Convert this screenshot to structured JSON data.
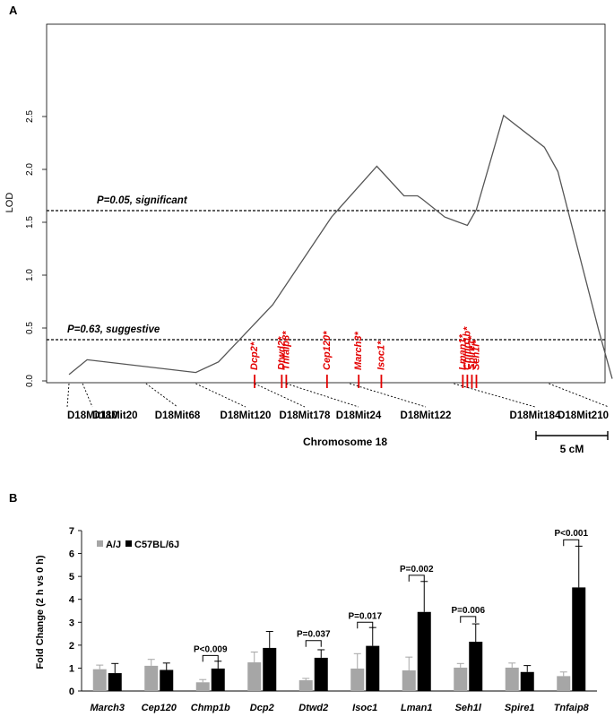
{
  "chart_data": [
    {
      "panel": "A",
      "type": "line",
      "ylabel": "LOD",
      "xlabel": "Chromosome 18",
      "ylim": [
        0,
        2.6
      ],
      "yticks": [
        "0.0",
        "0.5",
        "1.0",
        "1.5",
        "2.0",
        "2.5"
      ],
      "x": [
        0,
        4,
        28,
        33,
        45,
        58,
        68,
        74,
        77,
        78,
        83,
        88,
        90,
        96,
        105,
        108,
        117,
        120
      ],
      "lod": [
        0.06,
        0.2,
        0.08,
        0.18,
        0.72,
        1.55,
        2.03,
        1.75,
        1.75,
        1.72,
        1.55,
        1.47,
        1.62,
        2.51,
        2.21,
        1.98,
        0.48,
        0.02
      ],
      "thresholds": [
        {
          "label": "P=0.05, significant",
          "value": 1.61
        },
        {
          "label": "P=0.63, suggestive",
          "value": 0.39
        }
      ],
      "markers": [
        {
          "name": "D18Mit110",
          "x": 0
        },
        {
          "name": "D18Mit20",
          "x": 3
        },
        {
          "name": "D18Mit68",
          "x": 17
        },
        {
          "name": "D18Mit120",
          "x": 28
        },
        {
          "name": "D18Mit178",
          "x": 41
        },
        {
          "name": "D18Mit24",
          "x": 48
        },
        {
          "name": "D18Mit122",
          "x": 62
        },
        {
          "name": "D18Mit184",
          "x": 85
        },
        {
          "name": "D18Mit210",
          "x": 106
        }
      ],
      "genes": [
        {
          "name": "Dcp2*",
          "x": 41
        },
        {
          "name": "Dtwd2*",
          "x": 47
        },
        {
          "name": "Tnfaip8*",
          "x": 48
        },
        {
          "name": "Cep120*",
          "x": 57
        },
        {
          "name": "March3*",
          "x": 64
        },
        {
          "name": "Isoc1*",
          "x": 69
        },
        {
          "name": "Lman1*",
          "x": 87
        },
        {
          "name": "Chmp1b*",
          "x": 88
        },
        {
          "name": "Spire1*",
          "x": 89
        },
        {
          "name": "Seh1l*",
          "x": 90
        }
      ],
      "scale_bar": "5 cM"
    },
    {
      "panel": "B",
      "type": "bar",
      "ylabel": "Fold Change (2 h vs 0 h)",
      "ylim": [
        0,
        7
      ],
      "yticks": [
        "0",
        "1",
        "2",
        "3",
        "4",
        "5",
        "6",
        "7"
      ],
      "categories": [
        "March3",
        "Cep120",
        "Chmp1b",
        "Dcp2",
        "Dtwd2",
        "Isoc1",
        "Lman1",
        "Seh1l",
        "Spire1",
        "Tnfaip8"
      ],
      "series": [
        {
          "name": "A/J",
          "color": "#a6a6a6",
          "values": [
            0.95,
            1.1,
            0.38,
            1.25,
            0.47,
            0.98,
            0.9,
            1.02,
            1.02,
            0.65
          ],
          "errors": [
            0.18,
            0.28,
            0.12,
            0.45,
            0.08,
            0.65,
            0.58,
            0.18,
            0.2,
            0.18
          ]
        },
        {
          "name": "C57BL/6J",
          "color": "#000000",
          "values": [
            0.78,
            0.92,
            0.98,
            1.88,
            1.45,
            1.97,
            3.45,
            2.15,
            0.83,
            4.52
          ],
          "errors": [
            0.42,
            0.3,
            0.32,
            0.72,
            0.35,
            0.8,
            1.33,
            0.78,
            0.28,
            1.8
          ]
        }
      ],
      "pvalues": [
        {
          "category": "Chmp1b",
          "label": "P<0.009",
          "y": 1.55
        },
        {
          "category": "Dtwd2",
          "label": "P=0.037",
          "y": 2.2
        },
        {
          "category": "Isoc1",
          "label": "P=0.017",
          "y": 3.0
        },
        {
          "category": "Lman1",
          "label": "P=0.002",
          "y": 5.05
        },
        {
          "category": "Seh1l",
          "label": "P=0.006",
          "y": 3.25
        },
        {
          "category": "Tnfaip8",
          "label": "P<0.001",
          "y": 6.6
        }
      ],
      "legend_position": "top-left"
    }
  ]
}
